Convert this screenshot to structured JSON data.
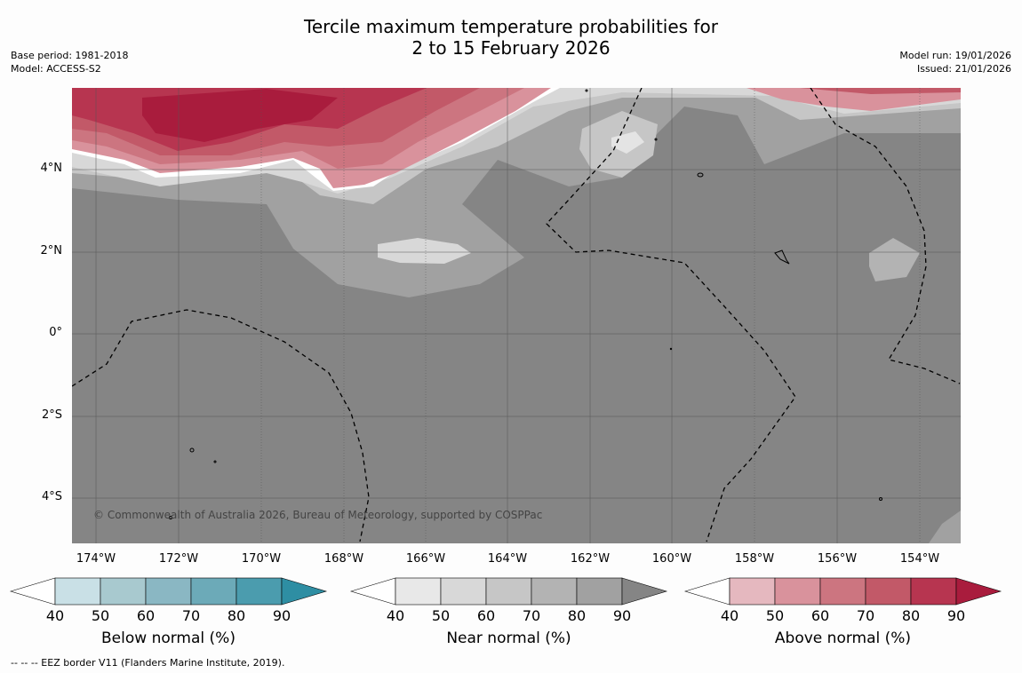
{
  "title_line1": "Tercile maximum temperature probabilities for",
  "title_line2": "2 to 15 February 2026",
  "meta": {
    "base_period": "Base period: 1981-2018",
    "model": "Model: ACCESS-S2",
    "model_run": "Model run: 19/01/2026",
    "issued": "Issued: 21/01/2026"
  },
  "map": {
    "lon_ticks": [
      "174°W",
      "172°W",
      "170°W",
      "168°W",
      "166°W",
      "164°W",
      "162°W",
      "160°W",
      "158°W",
      "156°W",
      "154°W"
    ],
    "lat_ticks": [
      "4°N",
      "2°N",
      "0°",
      "2°S",
      "4°S"
    ],
    "copyright": "© Commonwealth of Australia 2026, Bureau of Meteorology, supported by COSPPac"
  },
  "legends": [
    {
      "title": "Below normal (%)",
      "colors": [
        "#ffffff",
        "#c9e0e6",
        "#a8c9cf",
        "#8ab7c3",
        "#6caab8",
        "#4b9cae",
        "#2e8ea3"
      ]
    },
    {
      "title": "Near normal (%)",
      "colors": [
        "#ffffff",
        "#e8e8e8",
        "#d8d8d8",
        "#c6c6c6",
        "#b3b3b3",
        "#a1a1a1",
        "#858585"
      ]
    },
    {
      "title": "Above normal (%)",
      "colors": [
        "#ffffff",
        "#e5b8bf",
        "#d9929c",
        "#cc7580",
        "#c25968",
        "#b73550",
        "#a91c3d"
      ]
    }
  ],
  "legend_ticks": [
    "40",
    "50",
    "60",
    "70",
    "80",
    "90"
  ],
  "footnote": "--  --  -- EEZ border V11 (Flanders Marine Institute, 2019)."
}
